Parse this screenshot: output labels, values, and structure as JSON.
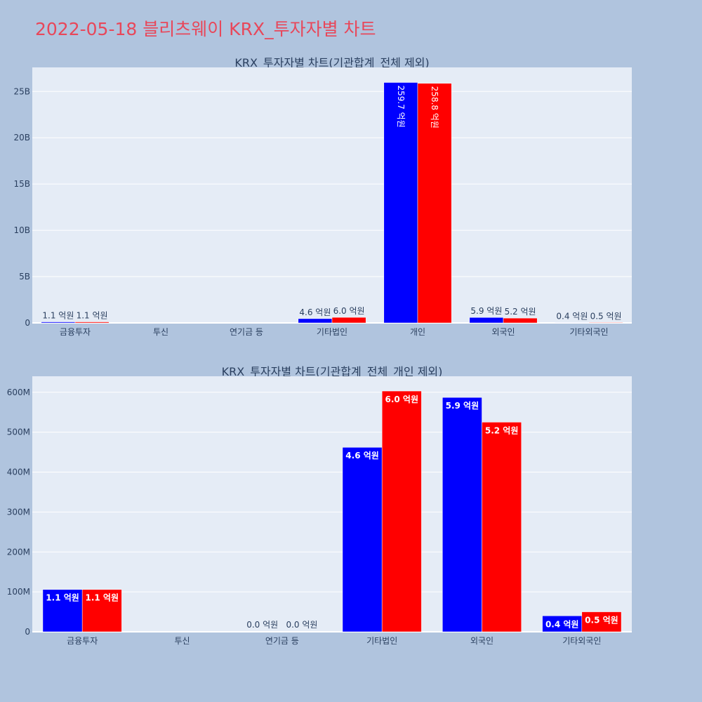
{
  "page": {
    "title": "2022-05-18 블리츠웨이 KRX_투자자별 차트"
  },
  "colors": {
    "buy": "#0000ff",
    "sell": "#ff0000",
    "plot_bg": "#e5ecf6",
    "page_bg": "#b0c4de",
    "title": "#e8475a"
  },
  "chart_data": [
    {
      "type": "bar",
      "title": "KRX_투자자별 차트(기관합계_전체 제외)",
      "categories": [
        "금융투자",
        "투신",
        "연기금 등",
        "기타법인",
        "개인",
        "외국인",
        "기타외국인"
      ],
      "y_ticks": [
        "0",
        "5B",
        "10B",
        "15B",
        "20B",
        "25B"
      ],
      "ylim": [
        0,
        27600000000
      ],
      "tick_step": 5000000000,
      "label_orientation": "vertical-inside-when-large",
      "series": [
        {
          "color": "#0000ff",
          "values": [
            110000000,
            0,
            0,
            460000000,
            25970000000,
            590000000,
            40000000
          ],
          "labels": [
            "1.1 억원",
            "",
            "",
            "4.6 억원",
            "259.7 억원",
            "5.9 억원",
            "0.4 억원"
          ]
        },
        {
          "color": "#ff0000",
          "values": [
            110000000,
            0,
            0,
            600000000,
            25880000000,
            520000000,
            50000000
          ],
          "labels": [
            "1.1 억원",
            "",
            "",
            "6.0 억원",
            "258.8 억원",
            "5.2 억원",
            "0.5 억원"
          ]
        }
      ]
    },
    {
      "type": "bar",
      "title": "KRX_투자자별 차트(기관합계_전체_개인 제외)",
      "categories": [
        "금융투자",
        "투신",
        "연기금 등",
        "기타법인",
        "외국인",
        "기타외국인"
      ],
      "y_ticks": [
        "0",
        "100M",
        "200M",
        "300M",
        "400M",
        "500M",
        "600M"
      ],
      "ylim": [
        0,
        640000000
      ],
      "tick_step": 100000000,
      "series": [
        {
          "color": "#0000ff",
          "values": [
            106000000,
            0,
            0,
            462000000,
            587000000,
            40000000
          ],
          "labels": [
            "1.1 억원",
            "",
            "0.0 억원",
            "4.6 억원",
            "5.9 억원",
            "0.4 억원"
          ]
        },
        {
          "color": "#ff0000",
          "values": [
            106000000,
            0,
            0,
            603000000,
            525000000,
            50000000
          ],
          "labels": [
            "1.1 억원",
            "",
            "0.0 억원",
            "6.0 억원",
            "5.2 억원",
            "0.5 억원"
          ]
        }
      ]
    }
  ]
}
